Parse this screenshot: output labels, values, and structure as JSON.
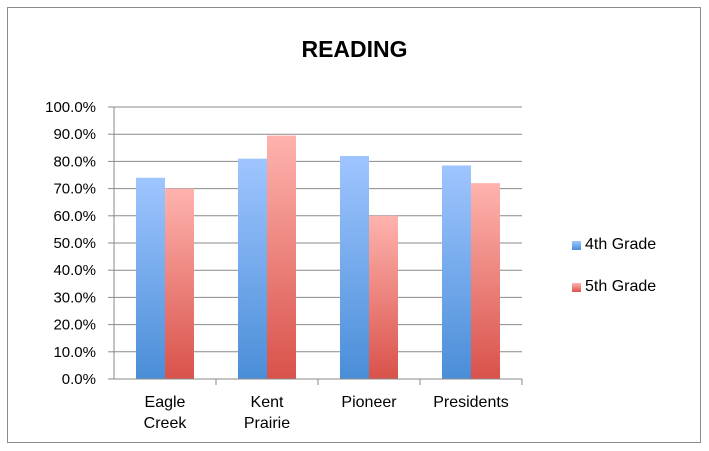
{
  "chart_data": {
    "type": "bar",
    "title": "READING",
    "categories": [
      [
        "Eagle",
        "Creek"
      ],
      [
        "Kent",
        "Prairie"
      ],
      [
        "Pioneer"
      ],
      [
        "Presidents"
      ]
    ],
    "series": [
      {
        "name": "4th Grade",
        "values": [
          74,
          81,
          82,
          78.5
        ],
        "color_top": "#9fc5ff",
        "color_bottom": "#4a8ed8"
      },
      {
        "name": "5th Grade",
        "values": [
          70,
          89.5,
          60,
          72
        ],
        "color_top": "#ffb3ae",
        "color_bottom": "#d8524a"
      }
    ],
    "ylim": [
      0,
      100
    ],
    "yticks": [
      "0.0%",
      "10.0%",
      "20.0%",
      "30.0%",
      "40.0%",
      "50.0%",
      "60.0%",
      "70.0%",
      "80.0%",
      "90.0%",
      "100.0%"
    ],
    "grid": true,
    "legend": "right"
  }
}
